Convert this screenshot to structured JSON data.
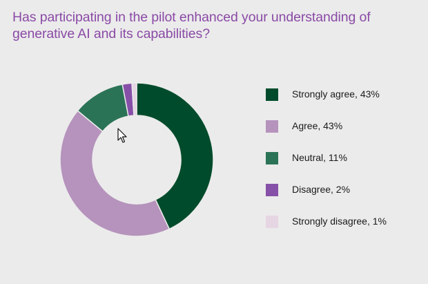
{
  "title": "Has participating in the pilot enhanced your understanding of generative AI and its capabilities?",
  "chart_data": {
    "type": "pie",
    "variant": "donut",
    "title": "Has participating in the pilot enhanced your understanding of generative AI and its capabilities?",
    "categories": [
      "Strongly agree",
      "Agree",
      "Neutral",
      "Disagree",
      "Strongly disagree"
    ],
    "values": [
      43,
      43,
      11,
      2,
      1
    ],
    "unit": "%",
    "colors": [
      "#004b2b",
      "#b593bc",
      "#2b7356",
      "#8750a8",
      "#e6d5e3"
    ],
    "legend_position": "right",
    "start_angle": "12 o'clock, clockwise"
  },
  "legend": {
    "items": [
      {
        "label": "Strongly agree, 43%",
        "color": "#004b2b"
      },
      {
        "label": "Agree, 43%",
        "color": "#b593bc"
      },
      {
        "label": "Neutral, 11%",
        "color": "#2b7356"
      },
      {
        "label": "Disagree, 2%",
        "color": "#8750a8"
      },
      {
        "label": "Strongly disagree, 1%",
        "color": "#e6d5e3"
      }
    ]
  },
  "colors": {
    "background": "#ebebeb",
    "title": "#8a4aa6"
  }
}
